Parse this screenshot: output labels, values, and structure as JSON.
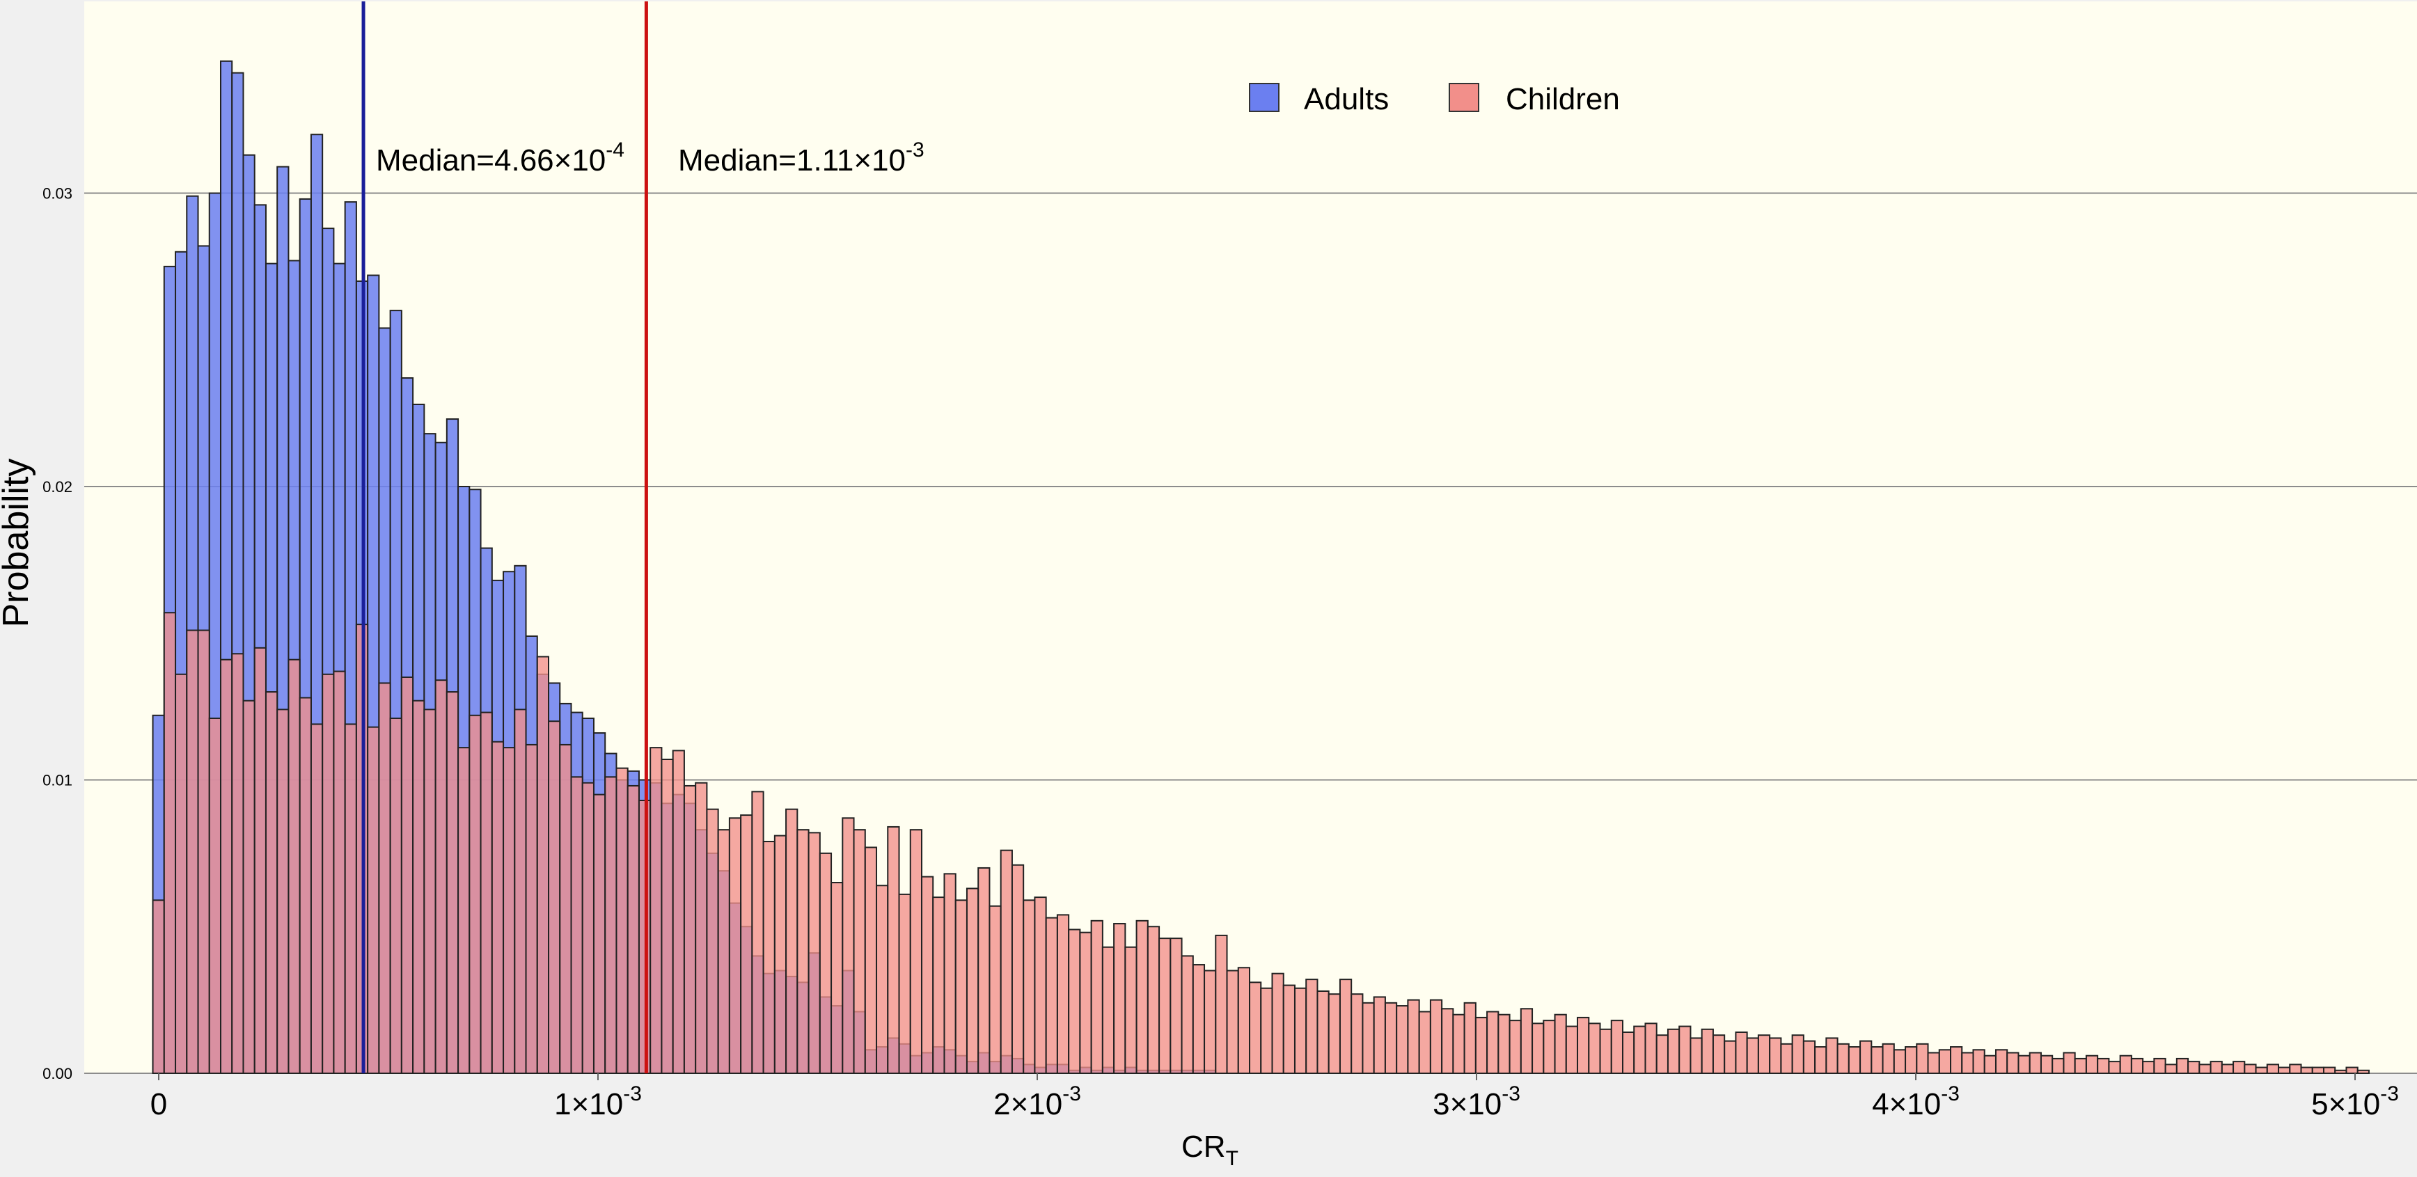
{
  "chart_data": {
    "type": "bar",
    "subtype": "overlapping-histogram",
    "title": "",
    "xlabel": "CR",
    "xlabel_subscript": "T",
    "ylabel": "Probability",
    "xlim": [
      -1.34e-05,
      0.0050866
    ],
    "ylim": [
      0,
      0.0365
    ],
    "bin_start": -1.34e-05,
    "bin_width": 2.574e-05,
    "grid": "horizontal major lines",
    "legend_position": "top-center",
    "x_tick_labels": [
      {
        "value": 0,
        "base": "0",
        "exp": ""
      },
      {
        "value": 0.001,
        "base": "1×10",
        "exp": "-3"
      },
      {
        "value": 0.002,
        "base": "2×10",
        "exp": "-3"
      },
      {
        "value": 0.003,
        "base": "3×10",
        "exp": "-3"
      },
      {
        "value": 0.004,
        "base": "4×10",
        "exp": "-3"
      },
      {
        "value": 0.005,
        "base": "5×10",
        "exp": "-3"
      }
    ],
    "y_ticks": [
      0,
      0.01,
      0.02,
      0.03
    ],
    "y_tick_labels": [
      "0.00",
      "0.01",
      "0.02",
      "0.03"
    ],
    "series": [
      {
        "name": "Adults",
        "color": "#6b7ff0",
        "line_color": "#1a1f99",
        "median": 0.000466,
        "median_label": "Median=4.66×10",
        "median_exp": "-4",
        "values": [
          0.0122,
          0.0275,
          0.028,
          0.0299,
          0.0282,
          0.03,
          0.0345,
          0.0341,
          0.0313,
          0.0296,
          0.0276,
          0.0309,
          0.0277,
          0.0298,
          0.032,
          0.0288,
          0.0276,
          0.0297,
          0.027,
          0.0272,
          0.0254,
          0.026,
          0.0237,
          0.0228,
          0.0218,
          0.0215,
          0.0223,
          0.02,
          0.0199,
          0.0179,
          0.0168,
          0.0171,
          0.0173,
          0.0149,
          0.0136,
          0.0133,
          0.0126,
          0.0123,
          0.0121,
          0.0116,
          0.0109,
          0.01,
          0.0103,
          0.01,
          0.0099,
          0.0092,
          0.0095,
          0.0092,
          0.0083,
          0.0075,
          0.0069,
          0.0058,
          0.005,
          0.004,
          0.0034,
          0.0035,
          0.0033,
          0.0031,
          0.0041,
          0.0026,
          0.0023,
          0.0035,
          0.0021,
          0.0008,
          0.0009,
          0.0012,
          0.001,
          0.0006,
          0.0007,
          0.0009,
          0.0008,
          0.0006,
          0.0004,
          0.0007,
          0.0004,
          0.0006,
          0.0005,
          0.0003,
          0.0002,
          0.0003,
          0.0003,
          0.0001,
          0.0002,
          0.0001,
          0.0002,
          0.0001,
          0.0002,
          0.0001,
          0.0001,
          0.0001,
          0.0001,
          0.0001,
          0.0001,
          0.0001,
          0,
          0,
          0,
          0,
          0,
          0,
          0,
          0,
          0,
          0,
          0,
          0,
          0,
          0,
          0,
          0,
          0,
          0,
          0,
          0,
          0,
          0,
          0,
          0,
          0,
          0,
          0,
          0,
          0,
          0,
          0,
          0,
          0,
          0,
          0,
          0,
          0,
          0,
          0,
          0,
          0,
          0,
          0,
          0,
          0,
          0,
          0,
          0,
          0,
          0,
          0,
          0,
          0,
          0,
          0,
          0,
          0,
          0,
          0,
          0,
          0,
          0,
          0,
          0,
          0,
          0,
          0,
          0,
          0,
          0,
          0,
          0,
          0,
          0,
          0,
          0,
          0,
          0,
          0,
          0,
          0,
          0,
          0,
          0,
          0,
          0,
          0,
          0,
          0,
          0,
          0,
          0,
          0,
          0,
          0,
          0,
          0,
          0,
          0,
          0,
          0,
          0,
          0,
          0,
          0,
          0,
          0,
          0,
          0,
          0
        ]
      },
      {
        "name": "Children",
        "color": "#f28f8a",
        "line_color": "#cc1111",
        "median": 0.00111,
        "median_label": "Median=1.11×10",
        "median_exp": "-3",
        "values": [
          0.0059,
          0.0157,
          0.0136,
          0.0151,
          0.0151,
          0.0121,
          0.0141,
          0.0143,
          0.0127,
          0.0145,
          0.013,
          0.0124,
          0.0141,
          0.0128,
          0.0119,
          0.0136,
          0.0137,
          0.0119,
          0.0153,
          0.0118,
          0.0133,
          0.0121,
          0.0135,
          0.0127,
          0.0124,
          0.0134,
          0.013,
          0.0111,
          0.0122,
          0.0123,
          0.0113,
          0.0111,
          0.0124,
          0.0112,
          0.0142,
          0.012,
          0.0112,
          0.0101,
          0.0099,
          0.0095,
          0.0101,
          0.0104,
          0.0098,
          0.0093,
          0.0111,
          0.0107,
          0.011,
          0.0098,
          0.0099,
          0.009,
          0.0083,
          0.0087,
          0.0088,
          0.0096,
          0.0079,
          0.0081,
          0.009,
          0.0083,
          0.0082,
          0.0075,
          0.0065,
          0.0087,
          0.0083,
          0.0077,
          0.0064,
          0.0084,
          0.0061,
          0.0083,
          0.0067,
          0.006,
          0.0068,
          0.0059,
          0.0063,
          0.007,
          0.0057,
          0.0076,
          0.0071,
          0.0059,
          0.006,
          0.0053,
          0.0054,
          0.0049,
          0.0048,
          0.0052,
          0.0043,
          0.0051,
          0.0043,
          0.0052,
          0.005,
          0.0046,
          0.0046,
          0.004,
          0.0037,
          0.0035,
          0.0047,
          0.0035,
          0.0036,
          0.0031,
          0.0029,
          0.0034,
          0.003,
          0.0029,
          0.0032,
          0.0028,
          0.0027,
          0.0032,
          0.0027,
          0.0024,
          0.0026,
          0.0024,
          0.0023,
          0.0025,
          0.0021,
          0.0025,
          0.0022,
          0.002,
          0.0024,
          0.0019,
          0.0021,
          0.002,
          0.0018,
          0.0022,
          0.0017,
          0.0018,
          0.002,
          0.0016,
          0.0019,
          0.0017,
          0.0015,
          0.0018,
          0.0014,
          0.0016,
          0.0017,
          0.0013,
          0.0015,
          0.0016,
          0.0012,
          0.0015,
          0.0013,
          0.0011,
          0.0014,
          0.0012,
          0.0013,
          0.0012,
          0.001,
          0.0013,
          0.0011,
          0.0009,
          0.0012,
          0.001,
          0.0009,
          0.0011,
          0.0009,
          0.001,
          0.0008,
          0.0009,
          0.001,
          0.0007,
          0.0008,
          0.0009,
          0.0007,
          0.0008,
          0.0006,
          0.0008,
          0.0007,
          0.0006,
          0.0007,
          0.0006,
          0.0005,
          0.0007,
          0.0005,
          0.0006,
          0.0005,
          0.0004,
          0.0006,
          0.0005,
          0.0004,
          0.0005,
          0.0003,
          0.0005,
          0.0004,
          0.0003,
          0.0004,
          0.0003,
          0.0004,
          0.0003,
          0.0002,
          0.0003,
          0.0002,
          0.0003,
          0.0002,
          0.0002,
          0.0002,
          0.0001,
          0.0002,
          0.0001
        ]
      }
    ]
  },
  "colors": {
    "panel_background": "#fffef0",
    "outer_background": "#f0f0f0",
    "grid": "#8c8c8c",
    "bar_outline": "#222222"
  }
}
